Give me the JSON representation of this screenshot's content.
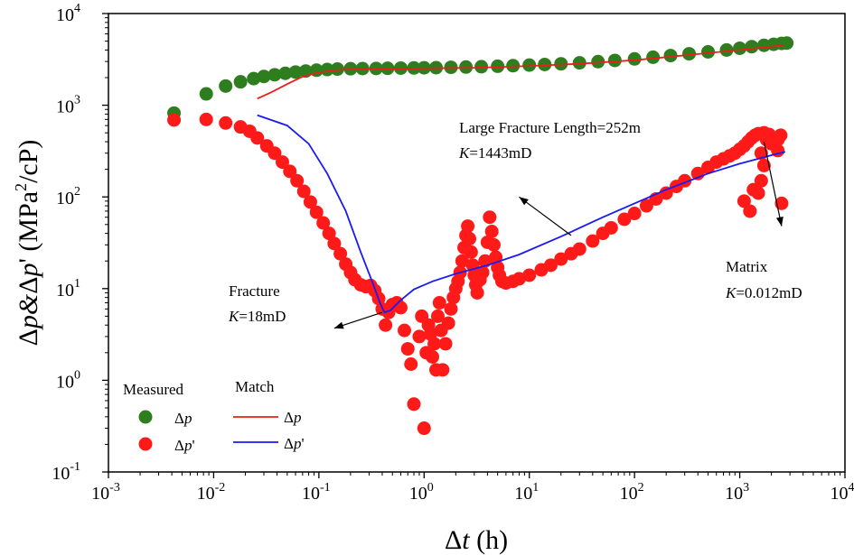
{
  "chart_data": {
    "type": "scatter",
    "xscale": "log",
    "yscale": "log",
    "xlim": [
      0.001,
      10000
    ],
    "ylim": [
      0.1,
      10000
    ],
    "xlabel": {
      "delta": "Δ",
      "var": "t",
      "unit": " (h)"
    },
    "ylabel": {
      "d1": "Δ",
      "p1": "p",
      "amp": "&",
      "d2": "Δ",
      "p2": "p",
      "prime": "'",
      "unit_pre": " (MPa",
      "unit_exp": "2",
      "unit_post": "/cP)"
    },
    "x_ticks": [
      {
        "base": "10",
        "exp": "-3",
        "value": 0.001
      },
      {
        "base": "10",
        "exp": "-2",
        "value": 0.01
      },
      {
        "base": "10",
        "exp": "-1",
        "value": 0.1
      },
      {
        "base": "10",
        "exp": "0",
        "value": 1
      },
      {
        "base": "10",
        "exp": "1",
        "value": 10
      },
      {
        "base": "10",
        "exp": "2",
        "value": 100
      },
      {
        "base": "10",
        "exp": "3",
        "value": 1000
      },
      {
        "base": "10",
        "exp": "4",
        "value": 10000
      }
    ],
    "y_ticks": [
      {
        "base": "10",
        "exp": "-1",
        "value": 0.1
      },
      {
        "base": "10",
        "exp": "0",
        "value": 1
      },
      {
        "base": "10",
        "exp": "1",
        "value": 10
      },
      {
        "base": "10",
        "exp": "2",
        "value": 100
      },
      {
        "base": "10",
        "exp": "3",
        "value": 1000
      },
      {
        "base": "10",
        "exp": "4",
        "value": 10000
      }
    ],
    "series": [
      {
        "name": "Measured Δp",
        "kind": "points",
        "color": "#2e7d1e",
        "points": [
          [
            0.0042,
            820
          ],
          [
            0.0085,
            1330
          ],
          [
            0.013,
            1620
          ],
          [
            0.018,
            1800
          ],
          [
            0.024,
            1950
          ],
          [
            0.03,
            2060
          ],
          [
            0.038,
            2150
          ],
          [
            0.048,
            2230
          ],
          [
            0.06,
            2300
          ],
          [
            0.075,
            2360
          ],
          [
            0.095,
            2410
          ],
          [
            0.12,
            2450
          ],
          [
            0.15,
            2480
          ],
          [
            0.2,
            2500
          ],
          [
            0.26,
            2510
          ],
          [
            0.35,
            2520
          ],
          [
            0.45,
            2530
          ],
          [
            0.6,
            2540
          ],
          [
            0.8,
            2550
          ],
          [
            1.0,
            2560
          ],
          [
            1.3,
            2570
          ],
          [
            1.8,
            2590
          ],
          [
            2.5,
            2610
          ],
          [
            3.5,
            2630
          ],
          [
            5,
            2660
          ],
          [
            7,
            2700
          ],
          [
            10,
            2740
          ],
          [
            14,
            2780
          ],
          [
            20,
            2830
          ],
          [
            30,
            2900
          ],
          [
            45,
            2990
          ],
          [
            65,
            3080
          ],
          [
            100,
            3200
          ],
          [
            150,
            3340
          ],
          [
            220,
            3480
          ],
          [
            330,
            3640
          ],
          [
            500,
            3820
          ],
          [
            750,
            4000
          ],
          [
            1000,
            4180
          ],
          [
            1300,
            4350
          ],
          [
            1700,
            4500
          ],
          [
            2100,
            4620
          ],
          [
            2500,
            4720
          ],
          [
            2800,
            4760
          ]
        ]
      },
      {
        "name": "Measured Δp'",
        "kind": "points",
        "color": "#ff1a1a",
        "points": [
          [
            0.0042,
            690
          ],
          [
            0.0085,
            700
          ],
          [
            0.013,
            640
          ],
          [
            0.018,
            580
          ],
          [
            0.022,
            520
          ],
          [
            0.026,
            440
          ],
          [
            0.032,
            360
          ],
          [
            0.038,
            300
          ],
          [
            0.045,
            240
          ],
          [
            0.053,
            190
          ],
          [
            0.062,
            150
          ],
          [
            0.072,
            115
          ],
          [
            0.083,
            88
          ],
          [
            0.095,
            68
          ],
          [
            0.11,
            52
          ],
          [
            0.125,
            40
          ],
          [
            0.14,
            31
          ],
          [
            0.16,
            24
          ],
          [
            0.18,
            18.5
          ],
          [
            0.2,
            15
          ],
          [
            0.22,
            12.5
          ],
          [
            0.25,
            11
          ],
          [
            0.28,
            10.5
          ],
          [
            0.31,
            10.8
          ],
          [
            0.34,
            9.5
          ],
          [
            0.37,
            7.8
          ],
          [
            0.4,
            6
          ],
          [
            0.43,
            4
          ],
          [
            0.46,
            5.5
          ],
          [
            0.5,
            6.7
          ],
          [
            0.55,
            7
          ],
          [
            0.6,
            6.2
          ],
          [
            0.65,
            3.5
          ],
          [
            0.7,
            2.2
          ],
          [
            0.75,
            1.5
          ],
          [
            0.8,
            0.55
          ],
          [
            0.9,
            3
          ],
          [
            0.95,
            5
          ],
          [
            1.0,
            0.3
          ],
          [
            1.05,
            2
          ],
          [
            1.1,
            4
          ],
          [
            1.15,
            3.2
          ],
          [
            1.2,
            1.8
          ],
          [
            1.25,
            2.5
          ],
          [
            1.3,
            1.3
          ],
          [
            1.35,
            5
          ],
          [
            1.4,
            7
          ],
          [
            1.45,
            3.5
          ],
          [
            1.5,
            1.3
          ],
          [
            1.6,
            2.5
          ],
          [
            1.7,
            4.2
          ],
          [
            1.8,
            6
          ],
          [
            1.9,
            8
          ],
          [
            2.0,
            10
          ],
          [
            2.1,
            12
          ],
          [
            2.2,
            15
          ],
          [
            2.3,
            20
          ],
          [
            2.4,
            28
          ],
          [
            2.5,
            38
          ],
          [
            2.6,
            48
          ],
          [
            2.7,
            35
          ],
          [
            2.8,
            25
          ],
          [
            2.9,
            18
          ],
          [
            3.0,
            14
          ],
          [
            3.1,
            11
          ],
          [
            3.2,
            9
          ],
          [
            3.4,
            12.5
          ],
          [
            3.6,
            15
          ],
          [
            3.8,
            20
          ],
          [
            4.0,
            32
          ],
          [
            4.2,
            60
          ],
          [
            4.4,
            42
          ],
          [
            4.6,
            30
          ],
          [
            4.8,
            22
          ],
          [
            5.0,
            17
          ],
          [
            5.2,
            14
          ],
          [
            5.5,
            12
          ],
          [
            6,
            11.5
          ],
          [
            7,
            12
          ],
          [
            8,
            12.8
          ],
          [
            10,
            14
          ],
          [
            13,
            16
          ],
          [
            16,
            18
          ],
          [
            20,
            21
          ],
          [
            25,
            24
          ],
          [
            30,
            27
          ],
          [
            40,
            33
          ],
          [
            50,
            40
          ],
          [
            60,
            46
          ],
          [
            80,
            57
          ],
          [
            100,
            66
          ],
          [
            130,
            80
          ],
          [
            160,
            95
          ],
          [
            200,
            110
          ],
          [
            250,
            130
          ],
          [
            300,
            150
          ],
          [
            400,
            180
          ],
          [
            500,
            210
          ],
          [
            600,
            240
          ],
          [
            700,
            260
          ],
          [
            800,
            280
          ],
          [
            900,
            300
          ],
          [
            1000,
            330
          ],
          [
            1100,
            360
          ],
          [
            1200,
            400
          ],
          [
            1300,
            440
          ],
          [
            1400,
            470
          ],
          [
            1500,
            490
          ],
          [
            1700,
            500
          ],
          [
            1900,
            480
          ],
          [
            2100,
            440
          ],
          [
            2300,
            420
          ],
          [
            2450,
            470
          ],
          [
            1600,
            300
          ],
          [
            1700,
            220
          ],
          [
            1500,
            110
          ],
          [
            1600,
            150
          ],
          [
            1350,
            120
          ],
          [
            1250,
            70
          ],
          [
            1100,
            90
          ],
          [
            2500,
            85
          ],
          [
            2300,
            320
          ],
          [
            2000,
            380
          ],
          [
            1800,
            420
          ]
        ]
      },
      {
        "name": "Match Δp",
        "kind": "line",
        "color": "#e8201a",
        "points": [
          [
            0.026,
            1180
          ],
          [
            0.035,
            1380
          ],
          [
            0.05,
            1700
          ],
          [
            0.07,
            2050
          ],
          [
            0.1,
            2280
          ],
          [
            0.15,
            2420
          ],
          [
            0.25,
            2480
          ],
          [
            0.5,
            2500
          ],
          [
            1,
            2520
          ],
          [
            3,
            2560
          ],
          [
            10,
            2680
          ],
          [
            30,
            2830
          ],
          [
            100,
            3100
          ],
          [
            300,
            3500
          ],
          [
            1000,
            4000
          ],
          [
            2000,
            4350
          ],
          [
            2600,
            4500
          ]
        ]
      },
      {
        "name": "Match Δp'",
        "kind": "line",
        "color": "#1a1af5",
        "points": [
          [
            0.026,
            780
          ],
          [
            0.05,
            600
          ],
          [
            0.08,
            380
          ],
          [
            0.12,
            180
          ],
          [
            0.18,
            70
          ],
          [
            0.25,
            25
          ],
          [
            0.33,
            11
          ],
          [
            0.38,
            7
          ],
          [
            0.42,
            5.5
          ],
          [
            0.48,
            5.8
          ],
          [
            0.6,
            7.5
          ],
          [
            0.8,
            9.8
          ],
          [
            1.2,
            12
          ],
          [
            2,
            14.5
          ],
          [
            4,
            18
          ],
          [
            8,
            23.5
          ],
          [
            20,
            37
          ],
          [
            50,
            60
          ],
          [
            100,
            85
          ],
          [
            200,
            120
          ],
          [
            500,
            180
          ],
          [
            1000,
            230
          ],
          [
            2000,
            285
          ],
          [
            2700,
            310
          ]
        ]
      }
    ],
    "annotations": [
      {
        "id": "large-fracture",
        "line1": "Large Fracture Length=252m",
        "line2_var": "K",
        "line2_rest": "=1443mD",
        "arrow_from": [
          25,
          38
        ],
        "arrow_to": [
          8,
          100
        ]
      },
      {
        "id": "fracture",
        "line1": "Fracture",
        "line2_var": "K",
        "line2_rest": "=18mD",
        "arrow_from": [
          0.4,
          5.5
        ],
        "arrow_to": [
          0.14,
          3.7
        ]
      },
      {
        "id": "matrix",
        "line1": "Matrix",
        "line2_var": "K",
        "line2_rest": "=0.012mD",
        "arrow_from": [
          1700,
          400
        ],
        "arrow_to": [
          2500,
          48
        ]
      }
    ],
    "legend": {
      "placement": "bottom-left",
      "measured_header": "Measured",
      "match_header": "Match",
      "dp": {
        "delta": "Δ",
        "p": "p",
        "prime": ""
      },
      "dpp": {
        "delta": "Δ",
        "p": "p",
        "prime": "'"
      }
    }
  }
}
